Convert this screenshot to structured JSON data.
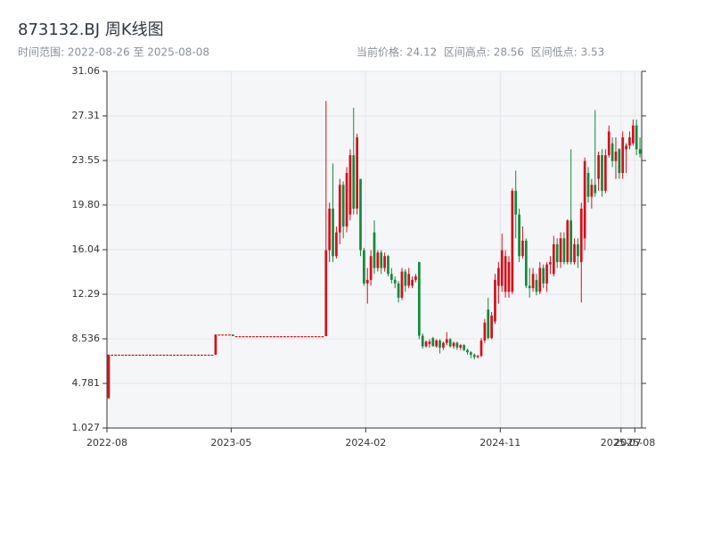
{
  "chart_data": {
    "type": "candlestick",
    "title": "873132.BJ 周K线图",
    "range_label": "时间范围: 2022-08-26 至 2025-08-08",
    "stats_label": "当前价格: 24.12  区间高点: 28.56  区间低点: 3.53",
    "up_color": "#d0121b",
    "down_color": "#138a3a",
    "grid": true,
    "ylim": [
      1.027,
      31.06
    ],
    "yticks": [
      1.027,
      4.781,
      8.536,
      12.29,
      16.04,
      {
        "value": 19.8,
        "label": "19.80"
      },
      23.55,
      27.31,
      31.06
    ],
    "xticks": [
      "2022-08",
      "2023-05",
      "2024-02",
      "2024-11",
      "2025-07",
      "2025-08"
    ],
    "x": [
      "2022-08",
      "2022-09",
      "2022-09",
      "2022-09",
      "2022-09",
      "2022-09",
      "2022-10",
      "2022-10",
      "2022-10",
      "2022-10",
      "2022-11",
      "2022-11",
      "2022-11",
      "2022-11",
      "2022-12",
      "2022-12",
      "2022-12",
      "2022-12",
      "2022-12",
      "2023-01",
      "2023-01",
      "2023-01",
      "2023-01",
      "2023-02",
      "2023-02",
      "2023-02",
      "2023-02",
      "2023-03",
      "2023-03",
      "2023-03",
      "2023-03",
      "2023-03",
      "2023-04",
      "2023-04",
      "2023-04",
      "2023-04",
      "2023-05",
      "2023-05",
      "2023-05",
      "2023-05",
      "2023-06",
      "2023-06",
      "2023-06",
      "2023-06",
      "2023-06",
      "2023-07",
      "2023-07",
      "2023-07",
      "2023-07",
      "2023-08",
      "2023-08",
      "2023-08",
      "2023-08",
      "2023-09",
      "2023-09",
      "2023-09",
      "2023-09",
      "2023-09",
      "2023-10",
      "2023-10",
      "2023-10",
      "2023-10",
      "2023-11",
      "2023-11",
      "2023-11",
      "2023-11",
      "2023-12",
      "2023-12",
      "2023-12",
      "2023-12",
      "2023-12",
      "2024-01",
      "2024-01",
      "2024-01",
      "2024-01",
      "2024-02",
      "2024-02",
      "2024-02",
      "2024-02",
      "2024-03",
      "2024-03",
      "2024-03",
      "2024-03",
      "2024-03",
      "2024-04",
      "2024-04",
      "2024-04",
      "2024-04",
      "2024-05",
      "2024-05",
      "2024-05",
      "2024-05",
      "2024-05",
      "2024-06",
      "2024-06",
      "2024-06",
      "2024-06",
      "2024-07",
      "2024-07",
      "2024-07",
      "2024-07",
      "2024-08",
      "2024-08",
      "2024-08",
      "2024-08",
      "2024-08",
      "2024-09",
      "2024-09",
      "2024-09",
      "2024-09",
      "2024-10",
      "2024-10",
      "2024-10",
      "2024-10",
      "2024-11",
      "2024-11",
      "2024-11",
      "2024-11",
      "2024-11",
      "2024-12",
      "2024-12",
      "2024-12",
      "2024-12",
      "2025-01",
      "2025-01",
      "2025-01",
      "2025-01",
      "2025-01",
      "2025-02",
      "2025-02",
      "2025-02",
      "2025-02",
      "2025-03",
      "2025-03",
      "2025-03",
      "2025-03",
      "2025-04",
      "2025-04",
      "2025-04",
      "2025-04",
      "2025-05",
      "2025-05",
      "2025-05",
      "2025-05",
      "2025-05",
      "2025-06",
      "2025-06",
      "2025-06",
      "2025-06",
      "2025-07",
      "2025-07",
      "2025-07",
      "2025-07",
      "2025-08",
      "2025-08"
    ],
    "open": [
      3.53,
      7.2,
      7.2,
      7.2,
      7.2,
      7.2,
      7.2,
      7.2,
      7.2,
      7.2,
      7.2,
      7.2,
      7.2,
      7.2,
      7.2,
      7.2,
      7.2,
      7.2,
      7.2,
      7.2,
      7.2,
      7.2,
      7.2,
      7.2,
      7.2,
      7.2,
      7.2,
      7.2,
      7.2,
      7.2,
      7.2,
      7.2,
      8.9,
      8.9,
      8.9,
      8.9,
      8.9,
      8.76,
      8.76,
      8.76,
      8.76,
      8.76,
      8.76,
      8.76,
      8.76,
      8.76,
      8.76,
      8.76,
      8.76,
      8.76,
      8.76,
      8.76,
      8.76,
      8.76,
      8.76,
      8.76,
      8.76,
      8.76,
      8.76,
      8.76,
      8.76,
      8.76,
      8.76,
      8.76,
      16,
      19.5,
      15.5,
      17.5,
      21.5,
      18,
      19,
      24,
      19.5,
      22,
      16,
      13.2,
      13.5,
      17.5,
      14.5,
      15.8,
      14.5,
      15.5,
      14,
      13.5,
      13.2,
      12,
      14.2,
      13,
      13,
      13.5,
      15,
      8.8,
      7.9,
      8.1,
      8.6,
      7.9,
      8.4,
      7.8,
      8.2,
      8.5,
      7.9,
      8.2,
      7.8,
      8,
      7.6,
      7.4,
      7.2,
      7,
      7.1,
      8.4,
      11,
      8.6,
      10,
      13,
      13,
      12.5,
      12.5,
      12.5,
      21,
      19,
      15.5,
      16.8,
      13,
      12.8,
      13.5,
      12.5,
      14.5,
      13.2,
      14.8,
      14,
      16.5,
      15,
      17,
      15,
      18.5,
      15,
      16.5,
      15,
      17,
      22.5,
      20.5,
      21.5,
      22,
      24,
      21,
      24,
      25,
      23.5,
      24.5,
      22.5,
      24.5,
      24.8,
      25,
      26.5,
      24.5
    ],
    "high": [
      7.2,
      7.2,
      7.2,
      7.2,
      7.2,
      7.2,
      7.2,
      7.2,
      7.2,
      7.2,
      7.2,
      7.2,
      7.2,
      7.2,
      7.2,
      7.2,
      7.2,
      7.2,
      7.2,
      7.2,
      7.2,
      7.2,
      7.2,
      7.2,
      7.2,
      7.2,
      7.2,
      7.2,
      7.2,
      7.2,
      7.2,
      8.9,
      8.9,
      8.9,
      8.9,
      8.9,
      8.9,
      8.76,
      8.76,
      8.76,
      8.76,
      8.76,
      8.76,
      8.76,
      8.76,
      8.76,
      8.76,
      8.76,
      8.76,
      8.76,
      8.76,
      8.76,
      8.76,
      8.76,
      8.76,
      8.76,
      8.76,
      8.76,
      8.76,
      8.76,
      8.76,
      8.76,
      8.76,
      28.56,
      20,
      23.3,
      18,
      22,
      21.8,
      23,
      24.5,
      28,
      25.8,
      22,
      16.2,
      14.5,
      16,
      18.5,
      16,
      16,
      15.8,
      15.6,
      14.5,
      13.8,
      13.4,
      14.5,
      14.4,
      14.5,
      13.8,
      14,
      15,
      9,
      8.4,
      8.5,
      8.7,
      8.5,
      8.5,
      8.3,
      9.1,
      8.6,
      8.3,
      8.3,
      8.1,
      8.1,
      7.7,
      7.5,
      7.3,
      7.2,
      8.6,
      10.2,
      12,
      10.8,
      14,
      15,
      17.4,
      16,
      15.5,
      21.2,
      22.7,
      19.5,
      18,
      17,
      14.5,
      14.5,
      14,
      15,
      14.8,
      15,
      15.5,
      17.2,
      17,
      17.5,
      17.5,
      18.6,
      24.5,
      17,
      17,
      20,
      23.8,
      23,
      22,
      27.8,
      24.3,
      24.5,
      24.5,
      26.5,
      25.5,
      25.5,
      24.6,
      26,
      25,
      26,
      27,
      27,
      25.5
    ],
    "low": [
      3.53,
      7.2,
      7.2,
      7.2,
      7.2,
      7.2,
      7.2,
      7.2,
      7.2,
      7.2,
      7.2,
      7.2,
      7.2,
      7.2,
      7.2,
      7.2,
      7.2,
      7.2,
      7.2,
      7.2,
      7.2,
      7.2,
      7.2,
      7.2,
      7.2,
      7.2,
      7.2,
      7.2,
      7.2,
      7.2,
      7.2,
      7.2,
      8.9,
      8.9,
      8.9,
      8.9,
      8.76,
      8.76,
      8.76,
      8.76,
      8.76,
      8.76,
      8.76,
      8.76,
      8.76,
      8.76,
      8.76,
      8.76,
      8.76,
      8.76,
      8.76,
      8.76,
      8.76,
      8.76,
      8.76,
      8.76,
      8.76,
      8.76,
      8.76,
      8.76,
      8.76,
      8.76,
      8.76,
      8.76,
      15,
      15,
      15.3,
      16.5,
      17,
      17.5,
      18.5,
      19,
      19,
      15.5,
      13,
      11.5,
      13,
      14,
      14.2,
      14,
      14.2,
      13.8,
      13.2,
      12.8,
      11.6,
      11.8,
      12.5,
      12.8,
      12.8,
      13.3,
      8.5,
      7.7,
      7.8,
      7.8,
      7.9,
      7.8,
      7.3,
      7.6,
      8,
      7.8,
      7.7,
      7.6,
      7.6,
      7.5,
      7.2,
      6.9,
      6.8,
      6.9,
      7,
      8.2,
      8.5,
      8.5,
      9.8,
      11.5,
      12.5,
      12,
      12,
      12.3,
      17,
      15,
      15.3,
      12.8,
      12,
      12.5,
      12.2,
      12.3,
      12.8,
      12.5,
      14,
      13.8,
      14.5,
      14.5,
      14.8,
      14.8,
      14.8,
      14.8,
      14.5,
      11.6,
      16,
      20,
      19.5,
      20.5,
      21,
      20.5,
      20.8,
      23.8,
      23,
      22,
      22,
      22,
      22.5,
      24.5,
      24.8,
      24,
      23.8
    ],
    "close": [
      7.2,
      7.2,
      7.2,
      7.2,
      7.2,
      7.2,
      7.2,
      7.2,
      7.2,
      7.2,
      7.2,
      7.2,
      7.2,
      7.2,
      7.2,
      7.2,
      7.2,
      7.2,
      7.2,
      7.2,
      7.2,
      7.2,
      7.2,
      7.2,
      7.2,
      7.2,
      7.2,
      7.2,
      7.2,
      7.2,
      7.2,
      8.9,
      8.9,
      8.9,
      8.9,
      8.9,
      8.76,
      8.76,
      8.76,
      8.76,
      8.76,
      8.76,
      8.76,
      8.76,
      8.76,
      8.76,
      8.76,
      8.76,
      8.76,
      8.76,
      8.76,
      8.76,
      8.76,
      8.76,
      8.76,
      8.76,
      8.76,
      8.76,
      8.76,
      8.76,
      8.76,
      8.76,
      8.76,
      16,
      19.5,
      15.5,
      17.5,
      21.5,
      18,
      22.5,
      24,
      19.5,
      25.5,
      16,
      13.2,
      13.5,
      15.5,
      14.5,
      15.8,
      14.5,
      15.5,
      14,
      13.5,
      13.2,
      12,
      14.2,
      13,
      14,
      13.5,
      13.8,
      8.8,
      7.9,
      8.3,
      8.3,
      7.9,
      8.4,
      7.8,
      8.2,
      8.5,
      7.9,
      8.2,
      7.8,
      8,
      7.6,
      7.4,
      7.2,
      7,
      7.1,
      8.4,
      9.9,
      8.6,
      10.5,
      13.5,
      14.5,
      16,
      15.5,
      15,
      21,
      19,
      15.5,
      16.8,
      13,
      12.8,
      14,
      12.5,
      14.5,
      13.2,
      14.8,
      15,
      16.5,
      15,
      17,
      15,
      18.5,
      15,
      16.5,
      15.5,
      19.5,
      23.5,
      20.5,
      21.5,
      20.8,
      24,
      21,
      24,
      26,
      23.5,
      24.3,
      22.5,
      25.5,
      24.8,
      25.5,
      26.5,
      24.5,
      24.12
    ]
  }
}
